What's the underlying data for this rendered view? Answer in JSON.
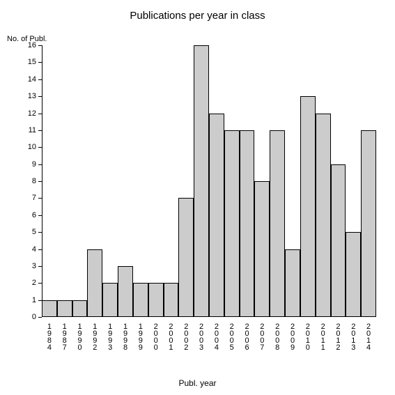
{
  "chart": {
    "type": "bar",
    "title": "Publications per year in class",
    "title_fontsize": 15,
    "y_axis_title": "No. of Publ.",
    "x_axis_title": "Publ. year",
    "label_fontsize": 12,
    "tick_fontsize": 11,
    "background_color": "#ffffff",
    "bar_color": "#cccccc",
    "bar_border_color": "#000000",
    "axis_color": "#000000",
    "ylim": [
      0,
      16
    ],
    "ytick_step": 1,
    "categories": [
      "1984",
      "1987",
      "1990",
      "1992",
      "1993",
      "1998",
      "1999",
      "2000",
      "2001",
      "2002",
      "2003",
      "2004",
      "2005",
      "2006",
      "2007",
      "2008",
      "2009",
      "2010",
      "2011",
      "2012",
      "2013",
      "2014"
    ],
    "values": [
      1,
      1,
      1,
      4,
      2,
      3,
      2,
      2,
      2,
      7,
      16,
      12,
      11,
      11,
      8,
      11,
      4,
      13,
      12,
      9,
      5,
      11
    ]
  }
}
